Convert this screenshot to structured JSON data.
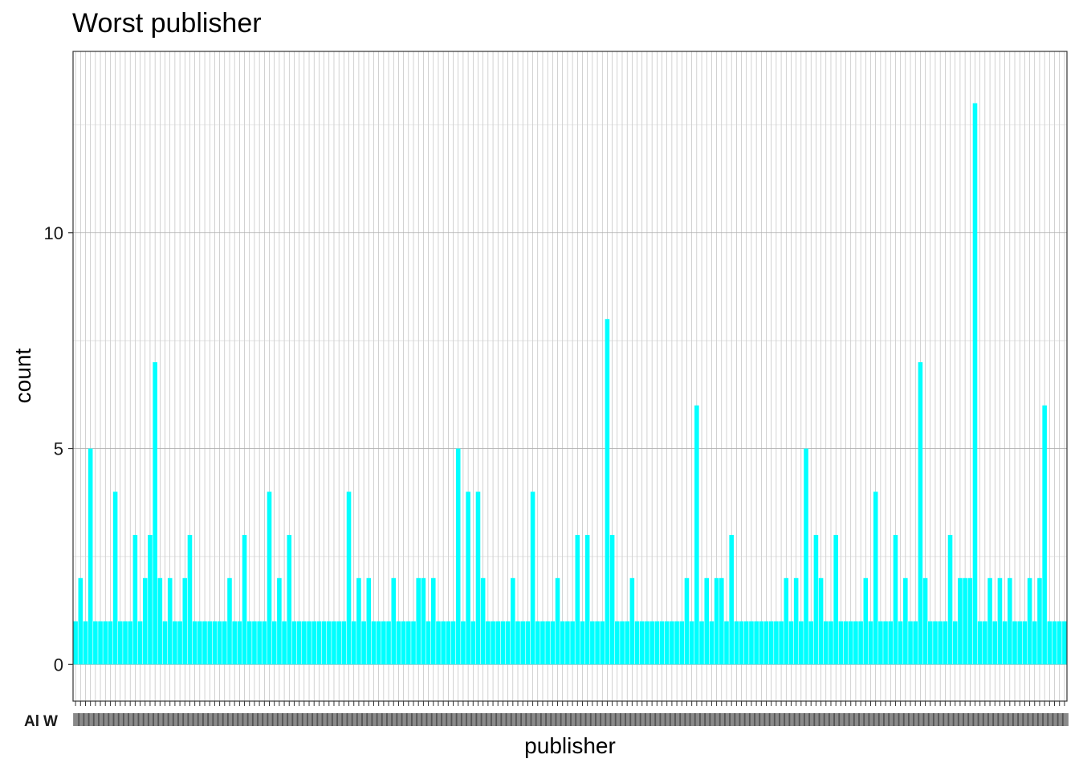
{
  "chart_data": {
    "type": "bar",
    "title": "Worst publisher",
    "xlabel": "publisher",
    "ylabel": "count",
    "ylim": [
      -0.85,
      14.2
    ],
    "yticks": [
      0,
      5,
      10
    ],
    "grid": true,
    "bar_color": "#00FFFF",
    "tick_labels_visible": [
      "Al",
      "W"
    ],
    "values": [
      1,
      2,
      1,
      5,
      1,
      1,
      1,
      1,
      4,
      1,
      1,
      1,
      3,
      1,
      2,
      3,
      7,
      2,
      1,
      2,
      1,
      1,
      2,
      3,
      1,
      1,
      1,
      1,
      1,
      1,
      1,
      2,
      1,
      1,
      3,
      1,
      1,
      1,
      1,
      4,
      1,
      2,
      1,
      3,
      1,
      1,
      1,
      1,
      1,
      1,
      1,
      1,
      1,
      1,
      1,
      4,
      1,
      2,
      1,
      2,
      1,
      1,
      1,
      1,
      2,
      1,
      1,
      1,
      1,
      2,
      2,
      1,
      2,
      1,
      1,
      1,
      1,
      5,
      1,
      4,
      1,
      4,
      2,
      1,
      1,
      1,
      1,
      1,
      2,
      1,
      1,
      1,
      4,
      1,
      1,
      1,
      1,
      2,
      1,
      1,
      1,
      3,
      1,
      3,
      1,
      1,
      1,
      8,
      3,
      1,
      1,
      1,
      2,
      1,
      1,
      1,
      1,
      1,
      1,
      1,
      1,
      1,
      1,
      2,
      1,
      6,
      1,
      2,
      1,
      2,
      2,
      1,
      3,
      1,
      1,
      1,
      1,
      1,
      1,
      1,
      1,
      1,
      1,
      2,
      1,
      2,
      1,
      5,
      1,
      3,
      2,
      1,
      1,
      3,
      1,
      1,
      1,
      1,
      1,
      2,
      1,
      4,
      1,
      1,
      1,
      3,
      1,
      2,
      1,
      1,
      7,
      2,
      1,
      1,
      1,
      1,
      3,
      1,
      2,
      2,
      2,
      13,
      1,
      1,
      2,
      1,
      2,
      1,
      2,
      1,
      1,
      1,
      2,
      1,
      2,
      6,
      1,
      1,
      1,
      1
    ]
  }
}
